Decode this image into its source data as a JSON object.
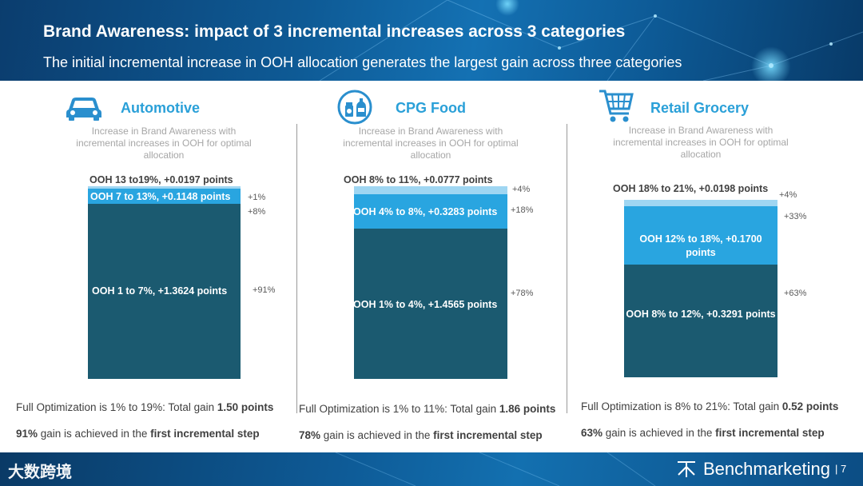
{
  "header": {
    "title": "Brand Awareness: impact of 3 incremental increases across 3 categories",
    "subtitle": "The initial incremental increase in OOH allocation generates the largest gain across three categories"
  },
  "colors": {
    "dark": "#1b5a70",
    "mid": "#29a5e0",
    "light": "#9fd6f2",
    "accent": "#2aa0d8"
  },
  "chart_data": [
    {
      "type": "bar",
      "title": "Automotive",
      "description": "Increase in Brand Awareness with incremental increases in OOH for optimal allocation",
      "segments": [
        {
          "label": "OOH 1 to 7%, +1.3624 points",
          "value": 1.3624,
          "pct": "+91%"
        },
        {
          "label": "OOH 7 to 13%, +0.1148 points",
          "value": 0.1148,
          "pct": "+8%"
        },
        {
          "label": "OOH 13 to19%, +0.0197 points",
          "value": 0.0197,
          "pct": "+1%"
        }
      ],
      "summary": {
        "prefix": "Full Optimization is 1% to 19%: Total gain ",
        "total": "1.50 points"
      },
      "first_step": {
        "pct": "91%",
        "middle": " gain is achieved in the ",
        "emph": "first incremental step"
      }
    },
    {
      "type": "bar",
      "title": "CPG Food",
      "description": "Increase in Brand Awareness with incremental increases in OOH for optimal allocation",
      "segments": [
        {
          "label": "OOH 1% to 4%, +1.4565 points",
          "value": 1.4565,
          "pct": "+78%"
        },
        {
          "label": "OOH 4% to 8%, +0.3283 points",
          "value": 0.3283,
          "pct": "+18%"
        },
        {
          "label": "OOH 8% to 11%, +0.0777 points",
          "value": 0.0777,
          "pct": "+4%"
        }
      ],
      "summary": {
        "prefix": "Full Optimization is 1% to 11%: Total gain ",
        "total": "1.86 points"
      },
      "first_step": {
        "pct": "78%",
        "middle": " gain is achieved in the ",
        "emph": "first incremental step"
      }
    },
    {
      "type": "bar",
      "title": "Retail Grocery",
      "description": "Increase in Brand Awareness with incremental increases in OOH for optimal allocation",
      "segments": [
        {
          "label": "OOH 8% to 12%, +0.3291 points",
          "value": 0.3291,
          "pct": "+63%"
        },
        {
          "label": "OOH 12% to 18%, +0.1700 points",
          "value": 0.17,
          "pct": "+33%"
        },
        {
          "label": "OOH 18% to 21%, +0.0198 points",
          "value": 0.0198,
          "pct": "+4%"
        }
      ],
      "summary": {
        "prefix": "Full Optimization is 8% to 21%: Total gain ",
        "total": "0.52 points"
      },
      "first_step": {
        "pct": "63%",
        "middle": " gain is achieved in the ",
        "emph": "first incremental step"
      }
    }
  ],
  "footer": {
    "watermark": "大数跨境",
    "brand": "Benchmarketing",
    "page": "7"
  }
}
